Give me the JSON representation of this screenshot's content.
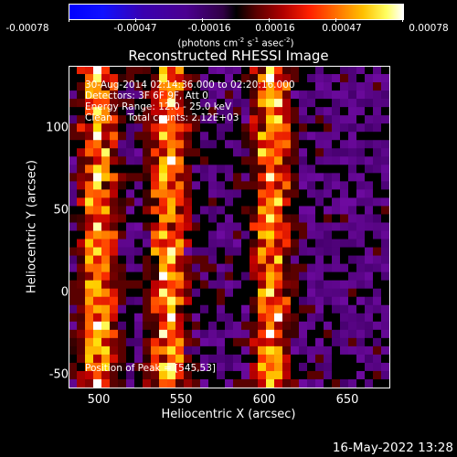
{
  "colorbar": {
    "ticks": [
      "-0.00078",
      "-0.00047",
      "-0.00016",
      "0.00016",
      "0.00047",
      "0.00078"
    ],
    "units": "(photons cm",
    "units_sup1": "-2",
    "units_mid1": " s",
    "units_sup2": "-1",
    "units_mid2": " asec",
    "units_sup3": "-2",
    "units_end": ")"
  },
  "plot": {
    "title": "Reconstructed RHESSI Image",
    "info": {
      "time_range": "30-Aug-2014 02:14:36.000 to 02:20:16.000",
      "detectors": "Detectors: 3F 6F 9F, Att 0",
      "energy": "Energy Range: 12.0 - 25.0 keV",
      "clean": "Clean     Total counts: 2.12E+03",
      "peak": "Position of Peak = [545,53]"
    },
    "xlabel": "Heliocentric X (arcsec)",
    "ylabel": "Heliocentric Y (arcsec)",
    "xticks": [
      "500",
      "550",
      "600",
      "650"
    ],
    "yticks": [
      "100",
      "50",
      "0",
      "-50"
    ],
    "xrange": [
      482,
      675
    ],
    "yrange": [
      -56,
      138
    ],
    "colormap": "hot-blue"
  },
  "footer": {
    "date": "16-May-2022 13:28"
  }
}
